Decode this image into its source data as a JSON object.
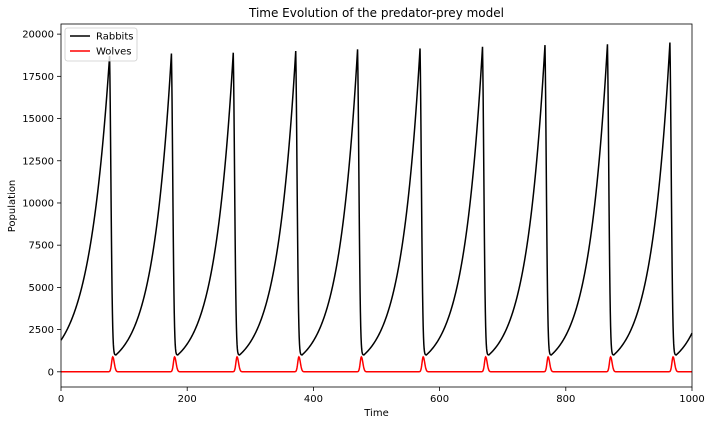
{
  "chart_data": {
    "type": "line",
    "title": "Time Evolution of the predator-prey model",
    "xlabel": "Time",
    "ylabel": "Population",
    "xlim": [
      0,
      1000
    ],
    "ylim": [
      -900,
      20600
    ],
    "xticks": [
      0,
      200,
      400,
      600,
      800,
      1000
    ],
    "yticks": [
      0,
      2500,
      5000,
      7500,
      10000,
      12500,
      15000,
      17500,
      20000
    ],
    "grid": false,
    "legend_position": "top-left",
    "rabbit_baseline": 1000,
    "rabbit_peak_times": [
      77,
      175,
      273,
      372,
      470,
      569,
      668,
      767,
      866,
      965
    ],
    "rabbit_peak_values": [
      18700,
      18850,
      18900,
      19000,
      19100,
      19150,
      19250,
      19350,
      19400,
      19500
    ],
    "wolf_peak_times": [
      82,
      180,
      279,
      377,
      476,
      574,
      673,
      772,
      871,
      970
    ],
    "wolf_peak_values": [
      880,
      880,
      880,
      880,
      880,
      880,
      880,
      880,
      880,
      880
    ],
    "series": [
      {
        "name": "Rabbits",
        "color": "#000000"
      },
      {
        "name": "Wolves",
        "color": "#ff0000"
      }
    ]
  }
}
